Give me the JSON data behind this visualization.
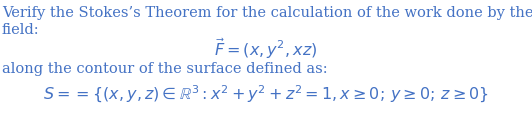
{
  "line1": "Verify the Stokes’s Theorem for the calculation of the work done by the vector",
  "line2": "field:",
  "formula_F": "$\\vec{F} = (x, y^2, xz)$",
  "line3": "along the contour of the surface defined as:",
  "formula_S": "$S == \\{(x, y, z) \\in \\mathbb{R}^3 : x^2 + y^2 + z^2 = 1, x \\geq 0;\\, y \\geq 0;\\, z \\geq 0\\}$",
  "text_color": "#4472C4",
  "bg_color": "#ffffff",
  "body_fontsize": 10.5,
  "formula_fontsize": 11.5,
  "fig_width": 5.32,
  "fig_height": 1.31,
  "dpi": 100
}
